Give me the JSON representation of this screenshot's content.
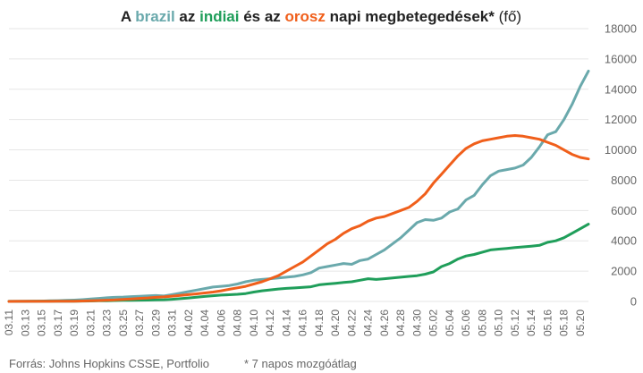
{
  "title": {
    "w1": "A ",
    "w2": "brazil",
    "w3": " az ",
    "w4": "indiai",
    "w5": " és az ",
    "w6": "orosz",
    "w7": " napi megbetegedések*",
    "w8": " (fő)"
  },
  "footer": {
    "source": "Forrás: Johns Hopkins CSSE, Portfolio",
    "note": "* 7 napos mozgóátlag"
  },
  "colors": {
    "brazil": "#6aa9ac",
    "india": "#1f9e5a",
    "russia": "#f05f1b"
  },
  "chart_data": {
    "type": "line",
    "title": "A brazil az indiai és az orosz napi megbetegedések* (fő)",
    "xlabel": "",
    "ylabel": "",
    "ylim": [
      0,
      18000
    ],
    "yticks": [
      0,
      2000,
      4000,
      6000,
      8000,
      10000,
      12000,
      14000,
      16000,
      18000
    ],
    "grid": true,
    "legend": "none (series named in title)",
    "x": [
      "03.11",
      "03.12",
      "03.13",
      "03.14",
      "03.15",
      "03.16",
      "03.17",
      "03.18",
      "03.19",
      "03.20",
      "03.21",
      "03.22",
      "03.23",
      "03.24",
      "03.25",
      "03.26",
      "03.27",
      "03.28",
      "03.29",
      "03.30",
      "03.31",
      "04.01",
      "04.02",
      "04.03",
      "04.04",
      "04.05",
      "04.06",
      "04.07",
      "04.08",
      "04.09",
      "04.10",
      "04.11",
      "04.12",
      "04.13",
      "04.14",
      "04.15",
      "04.16",
      "04.17",
      "04.18",
      "04.19",
      "04.20",
      "04.21",
      "04.22",
      "04.23",
      "04.24",
      "04.25",
      "04.26",
      "04.27",
      "04.28",
      "04.29",
      "04.30",
      "05.01",
      "05.02",
      "05.03",
      "05.04",
      "05.05",
      "05.06",
      "05.07",
      "05.08",
      "05.09",
      "05.10",
      "05.11",
      "05.12",
      "05.13",
      "05.14",
      "05.15",
      "05.16",
      "05.17",
      "05.18",
      "05.19",
      "05.20",
      "05.21"
    ],
    "xticklabels": [
      "03.11",
      "03.13",
      "03.15",
      "03.17",
      "03.19",
      "03.21",
      "03.23",
      "03.25",
      "03.27",
      "03.29",
      "03.31",
      "04.02",
      "04.04",
      "04.06",
      "04.08",
      "04.10",
      "04.12",
      "04.14",
      "04.16",
      "04.18",
      "04.20",
      "04.22",
      "04.24",
      "04.26",
      "04.28",
      "04.30",
      "05.02",
      "05.04",
      "05.06",
      "05.08",
      "05.10",
      "05.12",
      "05.14",
      "05.16",
      "05.18",
      "05.20"
    ],
    "series": [
      {
        "name": "brazil",
        "values": [
          5,
          8,
          12,
          18,
          25,
          40,
          55,
          70,
          90,
          120,
          160,
          200,
          240,
          270,
          290,
          320,
          340,
          370,
          390,
          360,
          450,
          550,
          650,
          750,
          850,
          950,
          1000,
          1050,
          1150,
          1300,
          1400,
          1450,
          1500,
          1550,
          1600,
          1650,
          1750,
          1900,
          2200,
          2300,
          2400,
          2500,
          2450,
          2700,
          2800,
          3100,
          3400,
          3800,
          4200,
          4700,
          5200,
          5400,
          5350,
          5500,
          5900,
          6100,
          6700,
          7000,
          7700,
          8300,
          8600,
          8700,
          8800,
          9000,
          9500,
          10200,
          11000,
          11200,
          12000,
          13000,
          14200,
          15200
        ]
      },
      {
        "name": "indiai",
        "values": [
          5,
          6,
          8,
          10,
          12,
          14,
          16,
          18,
          20,
          25,
          30,
          40,
          50,
          60,
          70,
          75,
          80,
          90,
          100,
          110,
          140,
          180,
          230,
          280,
          330,
          380,
          420,
          440,
          470,
          520,
          620,
          700,
          760,
          820,
          860,
          890,
          930,
          970,
          1100,
          1150,
          1200,
          1250,
          1300,
          1400,
          1500,
          1450,
          1500,
          1550,
          1600,
          1650,
          1700,
          1800,
          1950,
          2300,
          2500,
          2800,
          3000,
          3100,
          3250,
          3400,
          3450,
          3500,
          3550,
          3600,
          3650,
          3700,
          3900,
          4000,
          4200,
          4500,
          4800,
          5100
        ]
      },
      {
        "name": "orosz",
        "values": [
          2,
          3,
          4,
          5,
          6,
          8,
          10,
          14,
          20,
          30,
          45,
          60,
          80,
          100,
          130,
          160,
          200,
          230,
          270,
          300,
          350,
          400,
          450,
          500,
          560,
          620,
          700,
          800,
          900,
          1000,
          1150,
          1300,
          1500,
          1700,
          2000,
          2300,
          2600,
          3000,
          3400,
          3800,
          4100,
          4500,
          4800,
          5000,
          5300,
          5500,
          5600,
          5800,
          6000,
          6200,
          6600,
          7100,
          7800,
          8400,
          9000,
          9600,
          10100,
          10400,
          10600,
          10700,
          10800,
          10900,
          10950,
          10900,
          10800,
          10700,
          10500,
          10300,
          10000,
          9700,
          9500,
          9400
        ]
      }
    ]
  }
}
